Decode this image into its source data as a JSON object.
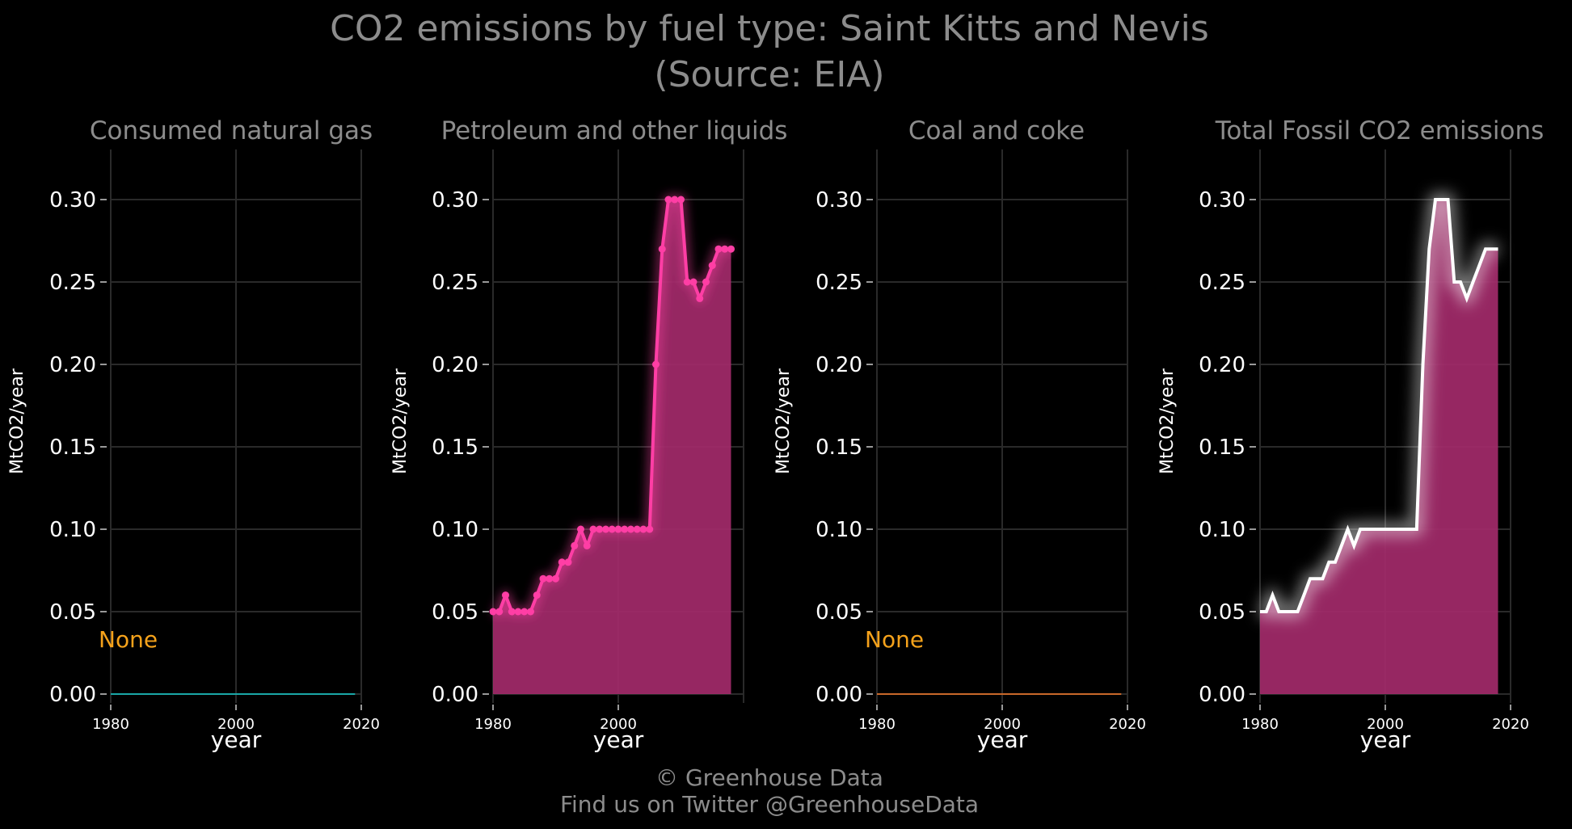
{
  "title_line1": "CO2 emissions by fuel type: Saint Kitts and Nevis",
  "title_line2": "(Source: EIA)",
  "footer_line1": "© Greenhouse Data",
  "footer_line2": "Find us on Twitter @GreenhouseData",
  "colors": {
    "background": "#000000",
    "gas_line": "#1aa7a7",
    "coal_line": "#c8682a",
    "petroleum_line": "#ff3ea5",
    "area_fill": "#a32a6a",
    "total_line": "#ffffff",
    "none_text": "#f5a21b"
  },
  "chart_data": [
    {
      "type": "area",
      "title": "Consumed natural gas",
      "xlabel": "year",
      "ylabel": "MtCO2/year",
      "xlim": [
        1980,
        2020
      ],
      "ylim": [
        0,
        0.33
      ],
      "xticks": [
        "1980",
        "2000",
        "2020"
      ],
      "yticks": [
        "0.00",
        "0.05",
        "0.10",
        "0.15",
        "0.20",
        "0.25",
        "0.30"
      ],
      "annotation": "None",
      "style": "flat",
      "x": [
        1980,
        2019
      ],
      "y": [
        0,
        0
      ]
    },
    {
      "type": "area",
      "title": "Petroleum and other liquids",
      "xlabel": "year",
      "ylabel": "MtCO2/year",
      "xlim": [
        1980,
        2020
      ],
      "ylim": [
        0,
        0.33
      ],
      "xticks": [
        "1980",
        "2000"
      ],
      "yticks": [
        "0.00",
        "0.05",
        "0.10",
        "0.15",
        "0.20",
        "0.25",
        "0.30"
      ],
      "style": "points",
      "x": [
        1980,
        1981,
        1982,
        1983,
        1984,
        1985,
        1986,
        1987,
        1988,
        1989,
        1990,
        1991,
        1992,
        1993,
        1994,
        1995,
        1996,
        1997,
        1998,
        1999,
        2000,
        2001,
        2002,
        2003,
        2004,
        2005,
        2006,
        2007,
        2008,
        2009,
        2010,
        2011,
        2012,
        2013,
        2014,
        2015,
        2016,
        2017,
        2018
      ],
      "y": [
        0.05,
        0.05,
        0.06,
        0.05,
        0.05,
        0.05,
        0.05,
        0.06,
        0.07,
        0.07,
        0.07,
        0.08,
        0.08,
        0.09,
        0.1,
        0.09,
        0.1,
        0.1,
        0.1,
        0.1,
        0.1,
        0.1,
        0.1,
        0.1,
        0.1,
        0.1,
        0.2,
        0.27,
        0.3,
        0.3,
        0.3,
        0.25,
        0.25,
        0.24,
        0.25,
        0.26,
        0.27,
        0.27,
        0.27
      ]
    },
    {
      "type": "area",
      "title": "Coal and coke",
      "xlabel": "year",
      "ylabel": "MtCO2/year",
      "xlim": [
        1980,
        2020
      ],
      "ylim": [
        0,
        0.33
      ],
      "xticks": [
        "1980",
        "2000",
        "2020"
      ],
      "yticks": [
        "0.00",
        "0.05",
        "0.10",
        "0.15",
        "0.20",
        "0.25",
        "0.30"
      ],
      "annotation": "None",
      "style": "flat",
      "x": [
        1980,
        2019
      ],
      "y": [
        0,
        0
      ]
    },
    {
      "type": "area",
      "title": "Total Fossil CO2 emissions",
      "xlabel": "year",
      "ylabel": "MtCO2/year",
      "xlim": [
        1980,
        2020
      ],
      "ylim": [
        0,
        0.33
      ],
      "xticks": [
        "1980",
        "2000",
        "2020"
      ],
      "yticks": [
        "0.00",
        "0.05",
        "0.10",
        "0.15",
        "0.20",
        "0.25",
        "0.30"
      ],
      "style": "glow",
      "x": [
        1980,
        1981,
        1982,
        1983,
        1984,
        1985,
        1986,
        1987,
        1988,
        1989,
        1990,
        1991,
        1992,
        1993,
        1994,
        1995,
        1996,
        1997,
        1998,
        1999,
        2000,
        2001,
        2002,
        2003,
        2004,
        2005,
        2006,
        2007,
        2008,
        2009,
        2010,
        2011,
        2012,
        2013,
        2014,
        2015,
        2016,
        2017,
        2018
      ],
      "y": [
        0.05,
        0.05,
        0.06,
        0.05,
        0.05,
        0.05,
        0.05,
        0.06,
        0.07,
        0.07,
        0.07,
        0.08,
        0.08,
        0.09,
        0.1,
        0.09,
        0.1,
        0.1,
        0.1,
        0.1,
        0.1,
        0.1,
        0.1,
        0.1,
        0.1,
        0.1,
        0.2,
        0.27,
        0.3,
        0.3,
        0.3,
        0.25,
        0.25,
        0.24,
        0.25,
        0.26,
        0.27,
        0.27,
        0.27
      ]
    }
  ]
}
